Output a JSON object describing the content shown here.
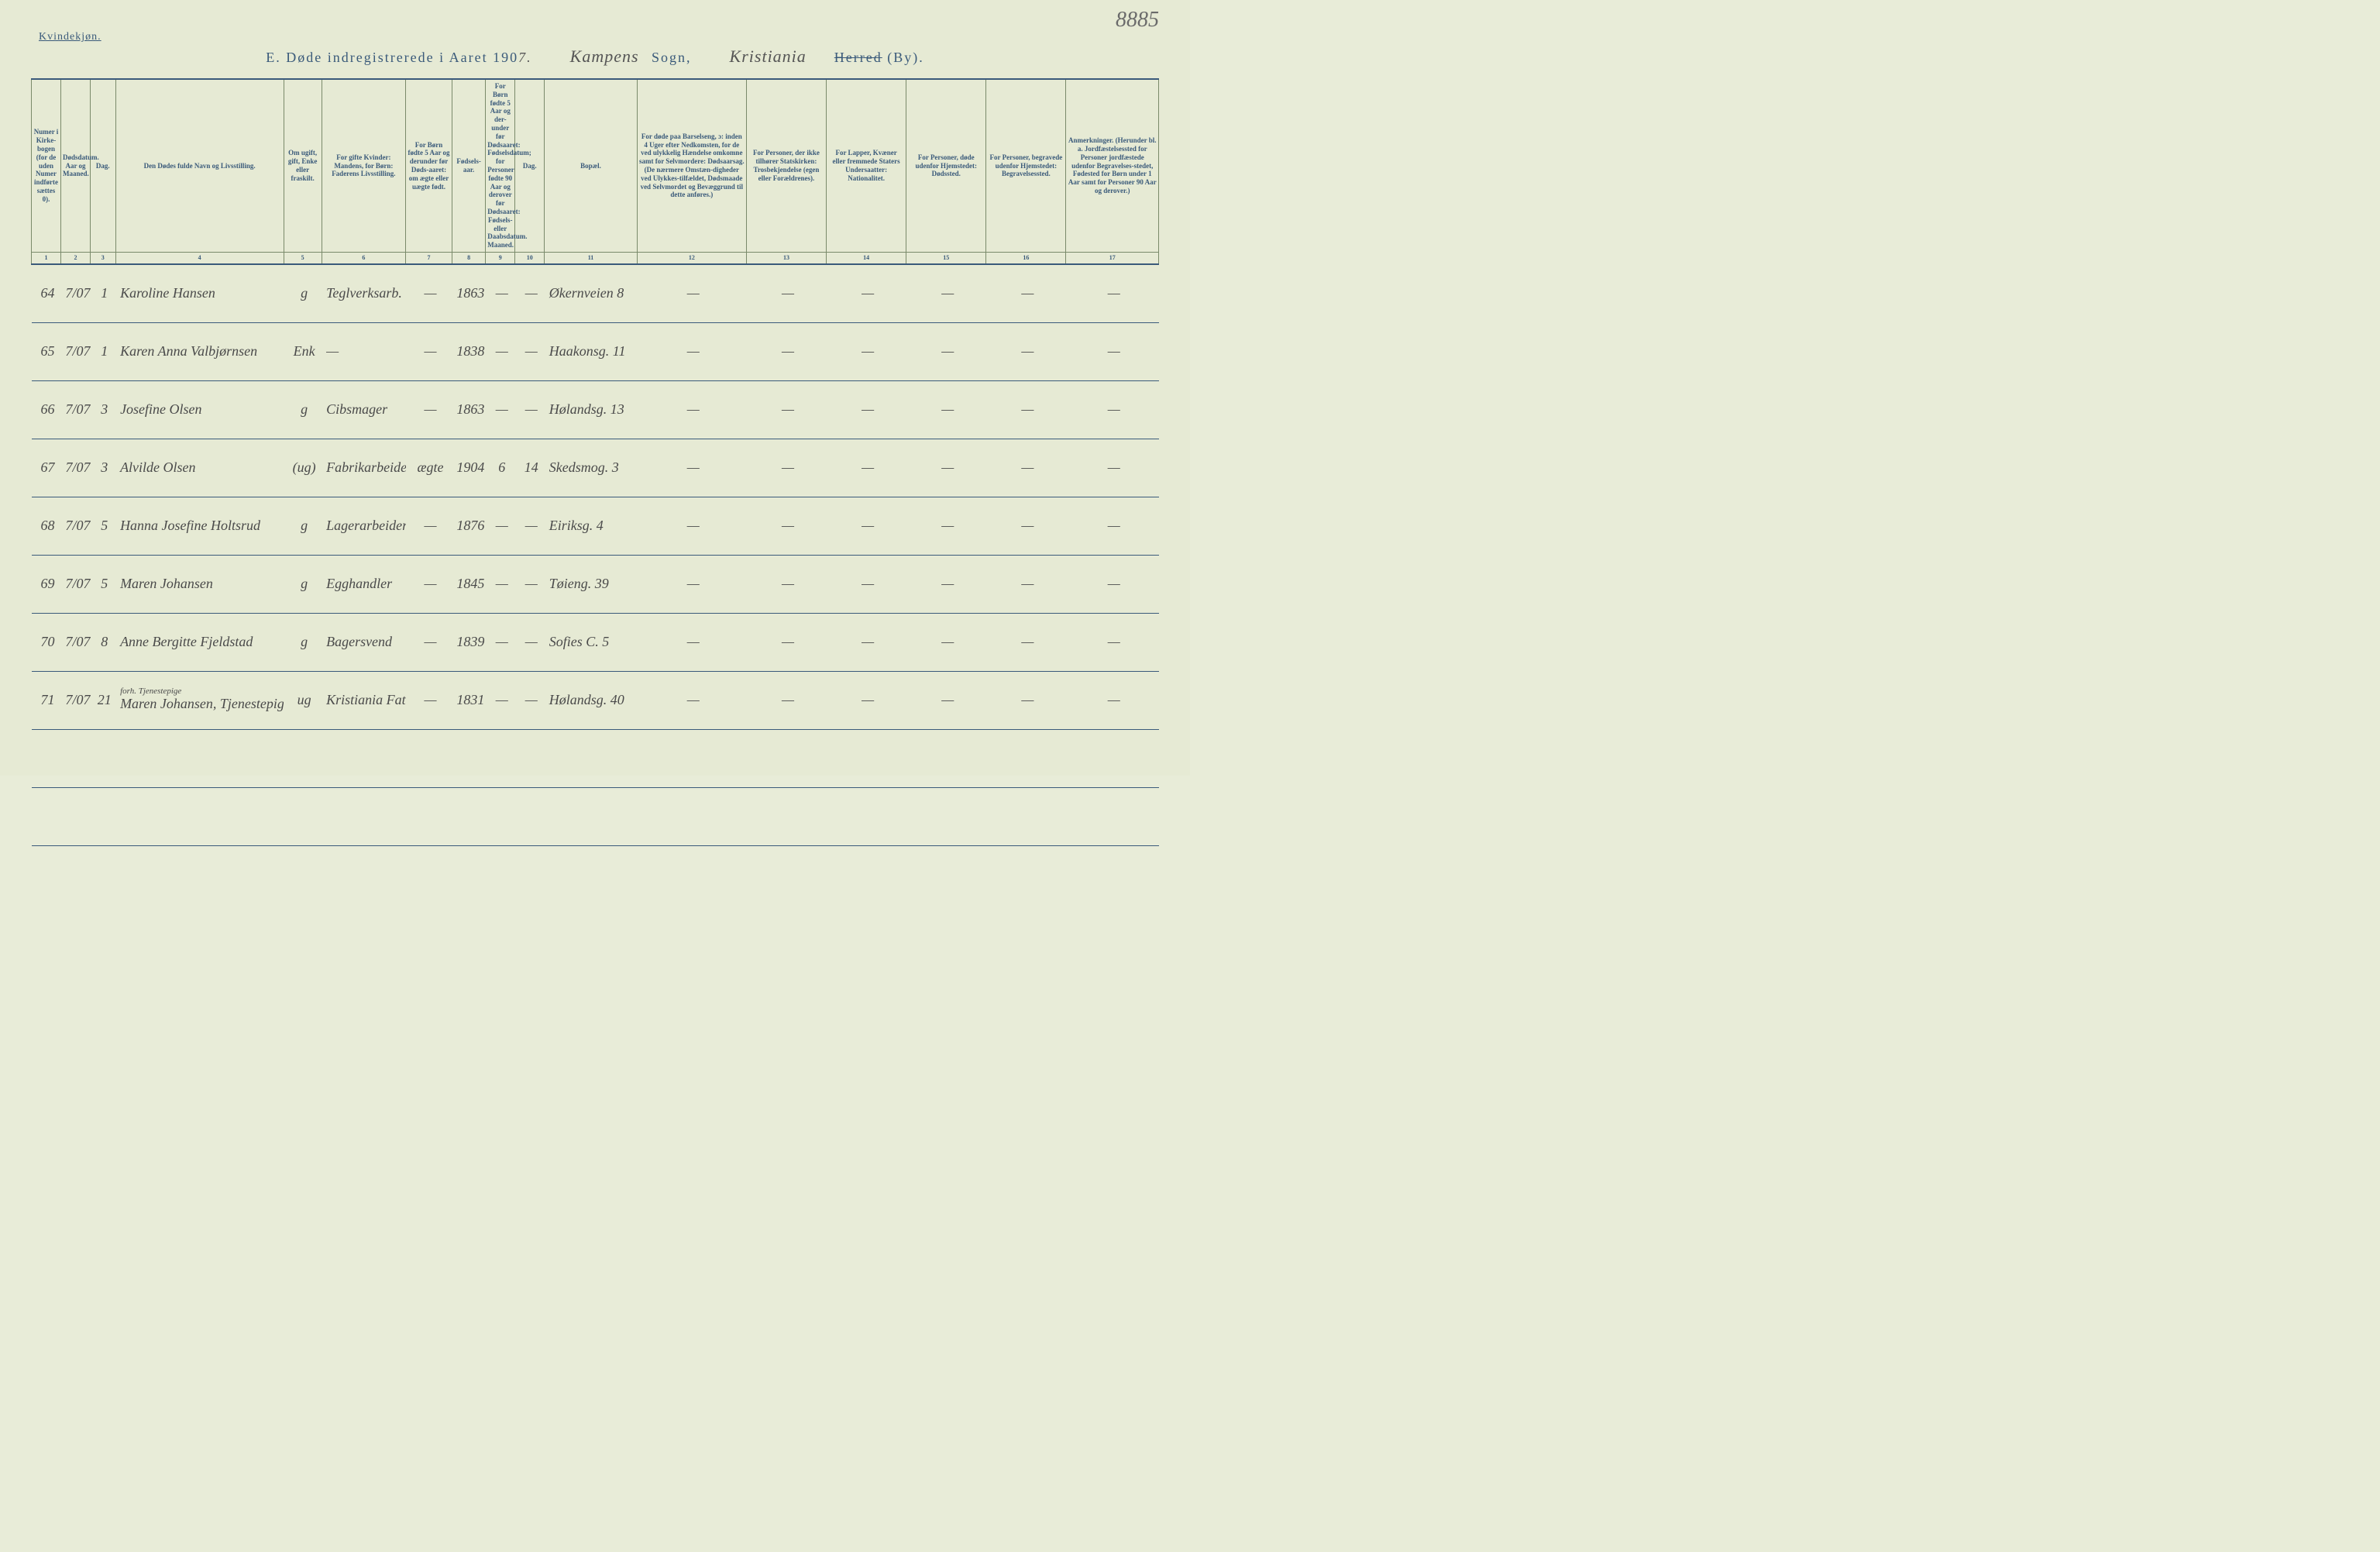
{
  "page": {
    "corner_label": "Kvindekjøn.",
    "page_number": "8885",
    "title": {
      "letter": "E.",
      "text": "Døde indregistrerede i Aaret 190",
      "year_suffix": "7.",
      "sogn_value": "Kampens",
      "sogn_label": "Sogn,",
      "herred_value": "Kristiania",
      "herred_label_struck": "Herred",
      "herred_label_rest": "(By)."
    }
  },
  "columns": [
    {
      "num": "1",
      "label": "Numer i Kirke-bogen (for de uden Numer indførte sættes 0)."
    },
    {
      "num": "2",
      "label": "Dødsdatum.\nAar og Maaned."
    },
    {
      "num": "3",
      "label": "Dag."
    },
    {
      "num": "4",
      "label": "Den Dødes fulde Navn og Livsstilling."
    },
    {
      "num": "5",
      "label": "Om ugift, gift, Enke eller fraskilt."
    },
    {
      "num": "6",
      "label": "For gifte Kvinder: Mandens, for Børn: Faderens Livsstilling."
    },
    {
      "num": "7",
      "label": "For Børn fødte 5 Aar og derunder før Døds-aaret: om ægte eller uægte født."
    },
    {
      "num": "8",
      "label": "Fødsels-aar."
    },
    {
      "num": "9",
      "label": "For Børn fødte 5 Aar og der-under før Dødsaaret: Fødselsdatum; for Personer fødte 90 Aar og derover før Dødsaaret: Fødsels- eller Daabsdatum.\nMaaned."
    },
    {
      "num": "10",
      "label": "Dag."
    },
    {
      "num": "11",
      "label": "Bopæl."
    },
    {
      "num": "12",
      "label": "For døde paa Barselseng, ɔ: inden 4 Uger efter Nedkomsten, for de ved ulykkelig Hændelse omkomne samt for Selvmordere: Dødsaarsag. (De nærmere Omstæn-digheder ved Ulykkes-tilfældet, Dødsmaade ved Selvmordet og Bevæggrund til dette anføres.)"
    },
    {
      "num": "13",
      "label": "For Personer, der ikke tilhører Statskirken: Trosbekjendelse (egen eller Forældrenes)."
    },
    {
      "num": "14",
      "label": "For Lapper, Kvæner eller fremmede Staters Undersaatter: Nationalitet."
    },
    {
      "num": "15",
      "label": "For Personer, døde udenfor Hjemstedet: Dødssted."
    },
    {
      "num": "16",
      "label": "For Personer, begravede udenfor Hjemstedet: Begravelsessted."
    },
    {
      "num": "17",
      "label": "Anmerkninger. (Herunder bl. a. Jordfæstelsessted for Personer jordfæstede udenfor Begravelses-stedet, Fødested for Børn under 1 Aar samt for Personer 90 Aar og derover.)"
    }
  ],
  "rows": [
    {
      "c1": "64",
      "c2": "7/07",
      "c3": "1",
      "c4": "Karoline Hansen",
      "c5": "g",
      "c6": "Teglverksarb.",
      "c7": "—",
      "c8": "1863",
      "c9": "—",
      "c10": "—",
      "c11": "Økernveien 8",
      "c12": "—",
      "c13": "—",
      "c14": "—",
      "c15": "—",
      "c16": "—",
      "c17": "—"
    },
    {
      "c1": "65",
      "c2": "7/07",
      "c3": "1",
      "c4": "Karen Anna Valbjørnsen",
      "c5": "Enk",
      "c6": "—",
      "c7": "—",
      "c8": "1838",
      "c9": "—",
      "c10": "—",
      "c11": "Haakonsg. 11",
      "c12": "—",
      "c13": "—",
      "c14": "—",
      "c15": "—",
      "c16": "—",
      "c17": "—"
    },
    {
      "c1": "66",
      "c2": "7/07",
      "c3": "3",
      "c4": "Josefine Olsen",
      "c5": "g",
      "c6": "Cibsmager",
      "c7": "—",
      "c8": "1863",
      "c9": "—",
      "c10": "—",
      "c11": "Hølandsg. 13",
      "c12": "—",
      "c13": "—",
      "c14": "—",
      "c15": "—",
      "c16": "—",
      "c17": "—"
    },
    {
      "c1": "67",
      "c2": "7/07",
      "c3": "3",
      "c4": "Alvilde Olsen",
      "c5": "(ug)",
      "c6": "Fabrikarbeider",
      "c7": "ægte",
      "c8": "1904",
      "c9": "6",
      "c10": "14",
      "c11": "Skedsmog. 3",
      "c12": "—",
      "c13": "—",
      "c14": "—",
      "c15": "—",
      "c16": "—",
      "c17": "—"
    },
    {
      "c1": "68",
      "c2": "7/07",
      "c3": "5",
      "c4": "Hanna Josefine Holtsrud",
      "c5": "g",
      "c6": "Lagerarbeider",
      "c7": "—",
      "c8": "1876",
      "c9": "—",
      "c10": "—",
      "c11": "Eiriksg. 4",
      "c12": "—",
      "c13": "—",
      "c14": "—",
      "c15": "—",
      "c16": "—",
      "c17": "—"
    },
    {
      "c1": "69",
      "c2": "7/07",
      "c3": "5",
      "c4": "Maren Johansen",
      "c5": "g",
      "c6": "Egghandler",
      "c7": "—",
      "c8": "1845",
      "c9": "—",
      "c10": "—",
      "c11": "Tøieng. 39",
      "c12": "—",
      "c13": "—",
      "c14": "—",
      "c15": "—",
      "c16": "—",
      "c17": "—"
    },
    {
      "c1": "70",
      "c2": "7/07",
      "c3": "8",
      "c4": "Anne Bergitte Fjeldstad",
      "c5": "g",
      "c6": "Bagersvend",
      "c7": "—",
      "c8": "1839",
      "c9": "—",
      "c10": "—",
      "c11": "Sofies C. 5",
      "c12": "—",
      "c13": "—",
      "c14": "—",
      "c15": "—",
      "c16": "—",
      "c17": "—"
    },
    {
      "c1": "71",
      "c2": "7/07",
      "c3": "21",
      "c4": "Maren Johansen, Tjenestepige",
      "c4_note": "forh. Tjenestepige",
      "c5": "ug",
      "c6": "Kristiania Fattighus",
      "c7": "—",
      "c8": "1831",
      "c9": "—",
      "c10": "—",
      "c11": "Hølandsg. 40",
      "c12": "—",
      "c13": "—",
      "c14": "—",
      "c15": "—",
      "c16": "—",
      "c17": "—"
    }
  ],
  "blank_rows": 2
}
